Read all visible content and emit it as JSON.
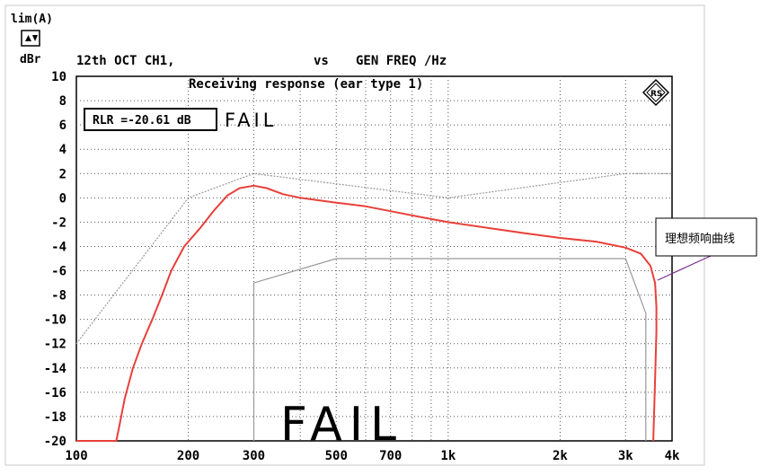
{
  "header": {
    "lim_label": "lim(A)",
    "toggle_icon": "up-down-arrows-icon",
    "unit_label": "dBr",
    "trace_label": "12th OCT CH1,",
    "vs_label": "vs",
    "xaxis_label": "GEN FREQ /Hz"
  },
  "chart_data": {
    "type": "line",
    "title": "Receiving response (ear type 1)",
    "xscale": "log",
    "xlim": [
      100,
      4000
    ],
    "ylim": [
      -20,
      10
    ],
    "grid": true,
    "y_ticks": [
      10,
      8,
      6,
      4,
      2,
      0,
      -2,
      -4,
      -6,
      -8,
      -10,
      -12,
      -14,
      -16,
      -18,
      -20
    ],
    "y_tick_labels": [
      "10",
      "8",
      "6",
      "4",
      "2",
      "0",
      "-2",
      "-4",
      "-6",
      "-8",
      "-10",
      "-12",
      "-14",
      "-16",
      "-18",
      "-20"
    ],
    "x_ticks": [
      100,
      200,
      300,
      500,
      700,
      1000,
      2000,
      3000,
      4000
    ],
    "x_tick_labels": [
      "100",
      "200",
      "300",
      "500",
      "700",
      "1k",
      "2k",
      "3k",
      "4k"
    ],
    "x_minor_ticks": [
      400,
      600,
      800,
      900
    ],
    "series": [
      {
        "role": "upper-limit",
        "color": "#9a9a9a",
        "points": [
          [
            100,
            -12
          ],
          [
            200,
            0
          ],
          [
            300,
            2
          ],
          [
            1000,
            0
          ],
          [
            3000,
            2
          ],
          [
            4000,
            2
          ]
        ]
      },
      {
        "role": "lower-limit",
        "color": "#9a9a9a",
        "points": [
          [
            300,
            -20
          ],
          [
            300,
            -7
          ],
          [
            500,
            -5
          ],
          [
            3000,
            -5
          ],
          [
            3400,
            -9.5
          ],
          [
            3400,
            -20
          ]
        ]
      },
      {
        "role": "measured",
        "color": "#e8403a",
        "points": [
          [
            100,
            -20
          ],
          [
            128,
            -20
          ],
          [
            130,
            -19
          ],
          [
            135,
            -16.5
          ],
          [
            142,
            -14
          ],
          [
            150,
            -12
          ],
          [
            160,
            -10
          ],
          [
            170,
            -8
          ],
          [
            180,
            -6
          ],
          [
            195,
            -4
          ],
          [
            215,
            -2.5
          ],
          [
            235,
            -1
          ],
          [
            255,
            0.2
          ],
          [
            275,
            0.8
          ],
          [
            300,
            1
          ],
          [
            325,
            0.8
          ],
          [
            360,
            0.3
          ],
          [
            400,
            0
          ],
          [
            500,
            -0.4
          ],
          [
            600,
            -0.7
          ],
          [
            700,
            -1.1
          ],
          [
            850,
            -1.6
          ],
          [
            1000,
            -2
          ],
          [
            1300,
            -2.5
          ],
          [
            1600,
            -2.9
          ],
          [
            2000,
            -3.3
          ],
          [
            2500,
            -3.6
          ],
          [
            3000,
            -4.1
          ],
          [
            3300,
            -4.6
          ],
          [
            3500,
            -5.6
          ],
          [
            3600,
            -7
          ],
          [
            3630,
            -9
          ],
          [
            3630,
            -11
          ],
          [
            3600,
            -15
          ],
          [
            3560,
            -20
          ]
        ]
      }
    ],
    "annotations": {
      "rlr_text": "RLR =-20.61 dB",
      "fail_small": "FAIL",
      "fail_big": "FAIL",
      "callout_text": "理想频响曲线",
      "logo_icon": "rohde-schwarz-logo-icon"
    }
  }
}
